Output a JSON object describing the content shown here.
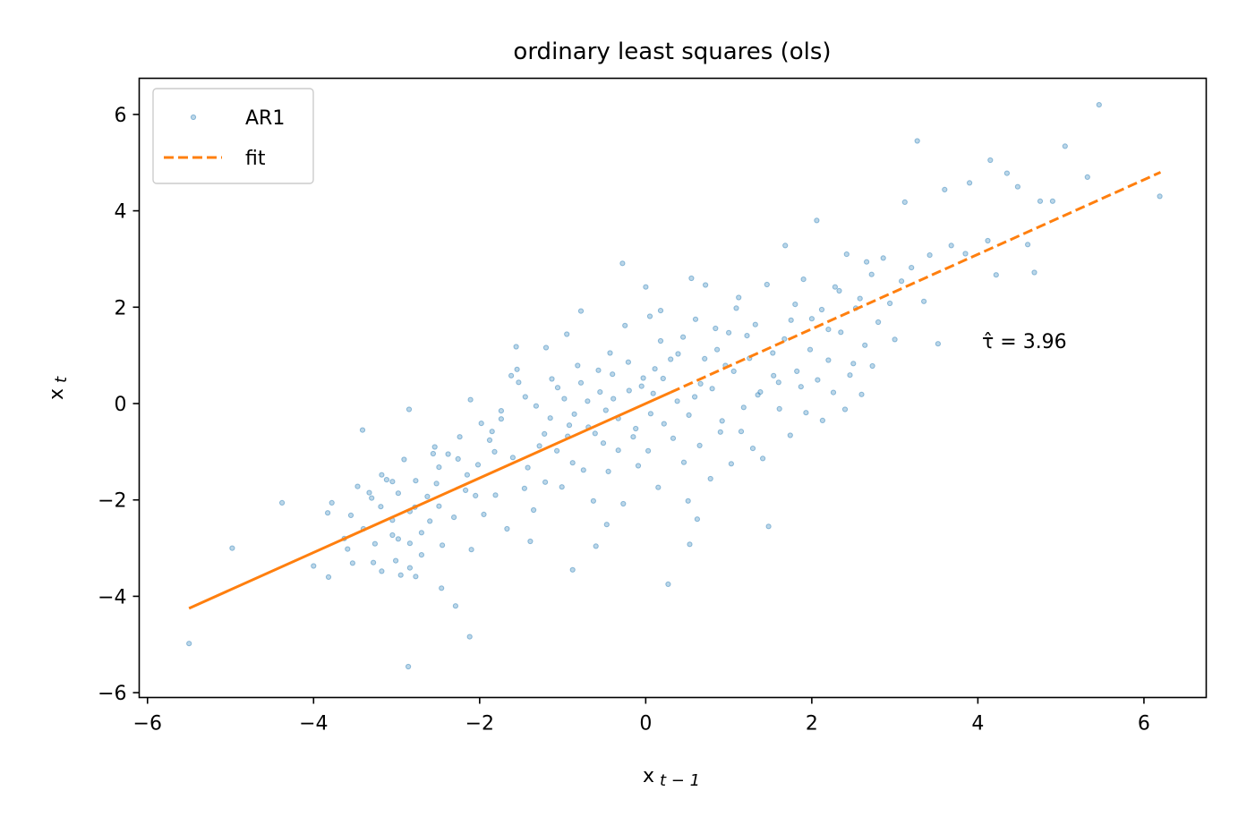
{
  "chart_data": {
    "type": "scatter",
    "title": "ordinary least squares (ols)",
    "xlabel_main": "x",
    "xlabel_sub": "t − 1",
    "ylabel_main": "x",
    "ylabel_sub": "t",
    "xlim": [
      -6.1,
      6.75
    ],
    "ylim": [
      -6.1,
      6.75
    ],
    "xticks": [
      -6,
      -4,
      -2,
      0,
      2,
      4,
      6
    ],
    "yticks": [
      -6,
      -4,
      -2,
      0,
      2,
      4,
      6
    ],
    "tick_labels": [
      "−6",
      "−4",
      "−2",
      "0",
      "2",
      "4",
      "6"
    ],
    "legend": {
      "placement": "upper-left",
      "scatter_label": "AR1",
      "fit_label": "fit"
    },
    "annotation": {
      "text": "τ̂ = 3.96",
      "x": 4.05,
      "y": 1.15
    },
    "colors": {
      "scatter": "#1f77b4",
      "fit": "#ff7f0e"
    },
    "fit": {
      "x_start": -5.5,
      "x_end": 6.2,
      "y_start": -4.25,
      "y_end": 4.8,
      "slope": 0.775,
      "intercept": 0.0,
      "solid_until_x": 0.3
    },
    "series": [
      {
        "name": "AR1",
        "points": [
          [
            -5.5,
            -4.98
          ],
          [
            -4.98,
            -3.0
          ],
          [
            -4.38,
            -2.06
          ],
          [
            -4.0,
            -3.37
          ],
          [
            -3.82,
            -3.6
          ],
          [
            -3.78,
            -2.06
          ],
          [
            -3.83,
            -2.27
          ],
          [
            -3.41,
            -0.55
          ],
          [
            -3.63,
            -2.8
          ],
          [
            -3.59,
            -3.02
          ],
          [
            -3.53,
            -3.31
          ],
          [
            -3.28,
            -3.3
          ],
          [
            -3.18,
            -3.48
          ],
          [
            -3.05,
            -2.73
          ],
          [
            -3.01,
            -3.26
          ],
          [
            -2.95,
            -3.56
          ],
          [
            -2.84,
            -3.41
          ],
          [
            -2.86,
            -5.46
          ],
          [
            -2.77,
            -3.59
          ],
          [
            -2.84,
            -2.9
          ],
          [
            -2.7,
            -3.14
          ],
          [
            -2.46,
            -3.83
          ],
          [
            -2.29,
            -4.2
          ],
          [
            -2.12,
            -4.84
          ],
          [
            -3.3,
            -1.96
          ],
          [
            -3.18,
            -1.48
          ],
          [
            -3.05,
            -1.62
          ],
          [
            -2.98,
            -1.86
          ],
          [
            -2.78,
            -2.15
          ],
          [
            -2.85,
            -0.12
          ],
          [
            -2.54,
            -0.9
          ],
          [
            -2.49,
            -1.32
          ],
          [
            -2.26,
            -1.15
          ],
          [
            -2.15,
            -1.48
          ],
          [
            -2.05,
            -1.91
          ],
          [
            -2.11,
            0.08
          ],
          [
            -1.98,
            -0.41
          ],
          [
            -1.85,
            -0.58
          ],
          [
            -1.82,
            -1.0
          ],
          [
            -1.74,
            -0.15
          ],
          [
            -1.62,
            0.58
          ],
          [
            -1.55,
            0.71
          ],
          [
            -1.45,
            0.14
          ],
          [
            -1.32,
            -0.05
          ],
          [
            -1.22,
            -0.63
          ],
          [
            -1.15,
            -0.3
          ],
          [
            -1.06,
            0.33
          ],
          [
            -0.98,
            0.1
          ],
          [
            -0.92,
            -0.45
          ],
          [
            -0.86,
            -0.22
          ],
          [
            -0.78,
            0.43
          ],
          [
            -0.7,
            0.05
          ],
          [
            -0.61,
            -0.62
          ],
          [
            -0.55,
            0.24
          ],
          [
            -0.48,
            -0.14
          ],
          [
            -0.4,
            0.61
          ],
          [
            -0.33,
            -0.31
          ],
          [
            -0.28,
            2.91
          ],
          [
            -0.2,
            0.27
          ],
          [
            -0.12,
            -0.52
          ],
          [
            -0.05,
            0.36
          ],
          [
            0.0,
            2.42
          ],
          [
            0.06,
            -0.21
          ],
          [
            0.11,
            0.72
          ],
          [
            0.18,
            1.93
          ],
          [
            0.22,
            -0.42
          ],
          [
            0.3,
            0.92
          ],
          [
            0.38,
            0.05
          ],
          [
            0.45,
            1.38
          ],
          [
            0.52,
            -0.24
          ],
          [
            0.6,
            1.75
          ],
          [
            0.66,
            0.41
          ],
          [
            0.72,
            2.46
          ],
          [
            0.8,
            0.31
          ],
          [
            0.86,
            1.12
          ],
          [
            0.92,
            -0.36
          ],
          [
            1.0,
            1.47
          ],
          [
            1.06,
            0.67
          ],
          [
            1.12,
            2.2
          ],
          [
            1.18,
            -0.08
          ],
          [
            1.25,
            0.94
          ],
          [
            1.32,
            1.64
          ],
          [
            1.38,
            0.24
          ],
          [
            1.46,
            2.47
          ],
          [
            1.53,
            1.05
          ],
          [
            1.6,
            0.44
          ],
          [
            1.68,
            3.28
          ],
          [
            1.75,
            1.73
          ],
          [
            1.82,
            0.67
          ],
          [
            1.9,
            2.58
          ],
          [
            1.98,
            1.12
          ],
          [
            2.06,
            3.8
          ],
          [
            2.12,
            1.95
          ],
          [
            2.2,
            0.9
          ],
          [
            2.28,
            2.42
          ],
          [
            2.35,
            1.48
          ],
          [
            2.42,
            3.1
          ],
          [
            2.5,
            0.83
          ],
          [
            2.58,
            2.18
          ],
          [
            2.64,
            1.21
          ],
          [
            2.72,
            2.68
          ],
          [
            2.8,
            1.69
          ],
          [
            2.86,
            3.02
          ],
          [
            2.94,
            2.08
          ],
          [
            3.0,
            1.33
          ],
          [
            3.08,
            2.54
          ],
          [
            3.12,
            4.18
          ],
          [
            3.2,
            2.82
          ],
          [
            3.27,
            5.45
          ],
          [
            3.35,
            2.12
          ],
          [
            3.42,
            3.08
          ],
          [
            3.52,
            1.24
          ],
          [
            3.6,
            4.44
          ],
          [
            3.68,
            3.28
          ],
          [
            3.85,
            3.11
          ],
          [
            3.9,
            4.58
          ],
          [
            4.12,
            3.38
          ],
          [
            4.15,
            5.05
          ],
          [
            4.22,
            2.67
          ],
          [
            4.35,
            4.78
          ],
          [
            4.48,
            4.5
          ],
          [
            4.6,
            3.3
          ],
          [
            4.68,
            2.72
          ],
          [
            4.75,
            4.2
          ],
          [
            4.9,
            4.2
          ],
          [
            5.05,
            5.34
          ],
          [
            5.32,
            4.7
          ],
          [
            5.46,
            6.2
          ],
          [
            6.19,
            4.3
          ],
          [
            -1.42,
            -1.33
          ],
          [
            -1.35,
            -2.21
          ],
          [
            -1.28,
            -0.88
          ],
          [
            -1.21,
            -1.63
          ],
          [
            -1.13,
            0.51
          ],
          [
            -1.07,
            -0.98
          ],
          [
            -1.01,
            -1.73
          ],
          [
            -0.94,
            -0.68
          ],
          [
            -0.88,
            -1.23
          ],
          [
            -0.82,
            0.79
          ],
          [
            -0.75,
            -1.38
          ],
          [
            -0.69,
            -0.49
          ],
          [
            -0.63,
            -2.02
          ],
          [
            -0.57,
            0.69
          ],
          [
            -0.51,
            -0.82
          ],
          [
            -0.45,
            -1.41
          ],
          [
            -0.39,
            0.1
          ],
          [
            -0.33,
            -0.97
          ],
          [
            -0.27,
            -2.08
          ],
          [
            -0.21,
            0.86
          ],
          [
            -0.15,
            -0.69
          ],
          [
            -0.09,
            -1.29
          ],
          [
            -0.03,
            0.53
          ],
          [
            0.03,
            -0.98
          ],
          [
            0.09,
            0.21
          ],
          [
            0.15,
            -1.74
          ],
          [
            0.21,
            0.52
          ],
          [
            0.27,
            -3.75
          ],
          [
            0.33,
            -0.72
          ],
          [
            0.39,
            1.03
          ],
          [
            0.46,
            -1.22
          ],
          [
            0.53,
            -2.92
          ],
          [
            0.59,
            0.14
          ],
          [
            0.65,
            -0.87
          ],
          [
            0.71,
            0.93
          ],
          [
            0.78,
            -1.56
          ],
          [
            0.84,
            1.56
          ],
          [
            0.9,
            -0.59
          ],
          [
            0.96,
            0.79
          ],
          [
            1.03,
            -1.25
          ],
          [
            1.09,
            1.98
          ],
          [
            1.15,
            -0.58
          ],
          [
            1.22,
            1.41
          ],
          [
            1.29,
            -0.93
          ],
          [
            1.35,
            0.18
          ],
          [
            1.41,
            -1.14
          ],
          [
            1.48,
            -2.55
          ],
          [
            1.54,
            0.58
          ],
          [
            1.61,
            -0.11
          ],
          [
            1.67,
            1.34
          ],
          [
            1.74,
            -0.66
          ],
          [
            1.8,
            2.06
          ],
          [
            1.87,
            0.35
          ],
          [
            1.93,
            -0.19
          ],
          [
            2.0,
            1.76
          ],
          [
            2.07,
            0.49
          ],
          [
            2.13,
            -0.35
          ],
          [
            2.2,
            1.54
          ],
          [
            2.26,
            0.23
          ],
          [
            2.33,
            2.34
          ],
          [
            2.4,
            -0.12
          ],
          [
            2.46,
            0.59
          ],
          [
            2.53,
            1.98
          ],
          [
            2.6,
            0.19
          ],
          [
            2.66,
            2.94
          ],
          [
            2.73,
            0.78
          ],
          [
            -2.02,
            -1.27
          ],
          [
            -1.95,
            -2.3
          ],
          [
            -1.88,
            -0.76
          ],
          [
            -1.81,
            -1.9
          ],
          [
            -1.74,
            -0.32
          ],
          [
            -1.67,
            -2.6
          ],
          [
            -1.6,
            -1.12
          ],
          [
            -1.53,
            0.44
          ],
          [
            -1.46,
            -1.76
          ],
          [
            -1.39,
            -2.86
          ],
          [
            -2.6,
            -2.44
          ],
          [
            -2.52,
            -1.66
          ],
          [
            -2.45,
            -2.94
          ],
          [
            -2.38,
            -1.05
          ],
          [
            -2.31,
            -2.36
          ],
          [
            -2.24,
            -0.69
          ],
          [
            -2.17,
            -1.8
          ],
          [
            -2.1,
            -3.03
          ],
          [
            -3.55,
            -2.32
          ],
          [
            -3.47,
            -1.72
          ],
          [
            -3.4,
            -2.6
          ],
          [
            -3.33,
            -1.85
          ],
          [
            -3.26,
            -2.91
          ],
          [
            -3.19,
            -2.14
          ],
          [
            -3.12,
            -1.58
          ],
          [
            -3.05,
            -2.42
          ],
          [
            -2.98,
            -2.81
          ],
          [
            -2.91,
            -1.16
          ],
          [
            -2.84,
            -2.24
          ],
          [
            -2.77,
            -1.6
          ],
          [
            -2.7,
            -2.68
          ],
          [
            -2.63,
            -1.93
          ],
          [
            -2.56,
            -1.04
          ],
          [
            -2.49,
            -2.13
          ],
          [
            -0.6,
            -2.96
          ],
          [
            -0.88,
            -3.45
          ],
          [
            -0.47,
            -2.51
          ],
          [
            0.51,
            -2.02
          ],
          [
            0.62,
            -2.4
          ],
          [
            -1.2,
            1.16
          ],
          [
            -0.78,
            1.92
          ],
          [
            -0.25,
            1.62
          ],
          [
            0.18,
            1.3
          ],
          [
            0.55,
            2.6
          ],
          [
            -0.43,
            1.05
          ],
          [
            0.05,
            1.81
          ],
          [
            -1.56,
            1.18
          ],
          [
            -0.95,
            1.44
          ]
        ]
      }
    ]
  }
}
